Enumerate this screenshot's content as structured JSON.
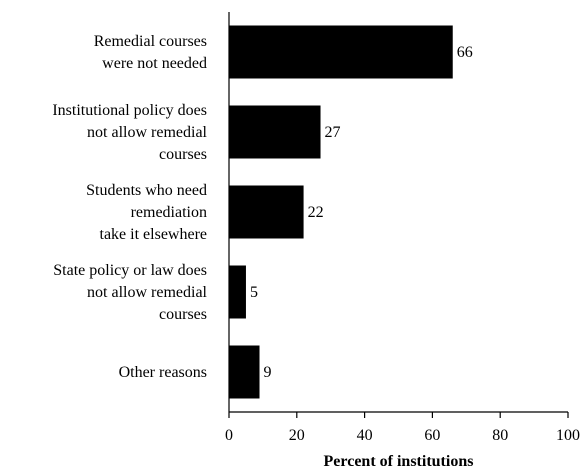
{
  "chart_data": {
    "type": "bar",
    "orientation": "horizontal",
    "categories": [
      [
        "Remedial courses",
        "were not needed"
      ],
      [
        "Institutional policy does",
        "not allow remedial",
        "courses"
      ],
      [
        "Students who need",
        "remediation",
        "take it elsewhere"
      ],
      [
        "State policy or law does",
        "not allow remedial",
        "courses"
      ],
      [
        "Other reasons"
      ]
    ],
    "values": [
      66,
      27,
      22,
      5,
      9
    ],
    "xlabel": "Percent of institutions",
    "xlim": [
      0,
      100
    ],
    "xticks": [
      0,
      20,
      40,
      60,
      80,
      100
    ],
    "grid": false,
    "legend": "none",
    "bar_color": "#000000"
  }
}
